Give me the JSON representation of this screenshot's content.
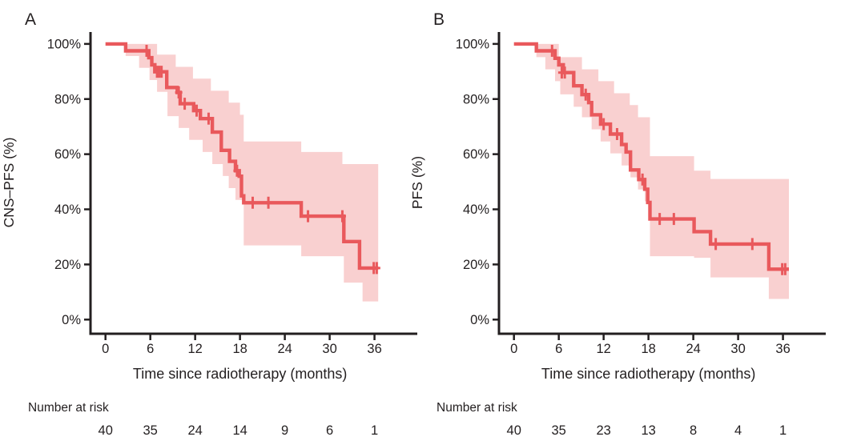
{
  "chart_data": {
    "type": "line",
    "subtype": "kaplan-meier-step-with-confidence-band",
    "title": "",
    "x_axis": {
      "label": "Time since radiotherapy (months)",
      "ticks": [
        0,
        6,
        12,
        18,
        24,
        30,
        36
      ],
      "range": [
        0,
        39
      ]
    },
    "y_axis": {
      "tick_values": [
        0,
        20,
        40,
        60,
        80,
        100
      ],
      "tick_labels": [
        "0%",
        "20%",
        "40%",
        "60%",
        "80%",
        "100%"
      ],
      "range": [
        0,
        100
      ]
    },
    "risk_label": "Number at risk",
    "risk_times": [
      0,
      6,
      12,
      18,
      24,
      30,
      36
    ],
    "colors": {
      "curve": "#e9595c",
      "band": "#f9d0d0",
      "axis": "#231f20",
      "text": "#231f20",
      "background": "#ffffff"
    },
    "panels": [
      {
        "label": "A",
        "ylabel": "CNS–PFS (%)",
        "risk_counts": [
          40,
          35,
          24,
          14,
          9,
          6,
          1
        ],
        "end_time": 36.5,
        "km": [
          [
            0,
            100
          ],
          [
            2.7,
            97.5
          ],
          [
            5.8,
            95.0
          ],
          [
            6.2,
            92.4
          ],
          [
            6.6,
            89.9
          ],
          [
            8.2,
            84.2
          ],
          [
            9.6,
            82.4
          ],
          [
            10.0,
            78.3
          ],
          [
            11.8,
            75.8
          ],
          [
            12.7,
            72.9
          ],
          [
            14.3,
            68.0
          ],
          [
            15.5,
            61.4
          ],
          [
            16.6,
            57.4
          ],
          [
            17.4,
            54.0
          ],
          [
            17.9,
            52.0
          ],
          [
            18.2,
            44.9
          ],
          [
            18.5,
            42.4
          ],
          [
            26.2,
            37.5
          ],
          [
            31.9,
            28.3
          ],
          [
            34.0,
            18.7
          ]
        ],
        "censors": [
          [
            5.5,
            97.5
          ],
          [
            6.9,
            89.9
          ],
          [
            7.2,
            89.9
          ],
          [
            7.5,
            89.9
          ],
          [
            9.8,
            82.4
          ],
          [
            10.6,
            78.3
          ],
          [
            12.2,
            75.8
          ],
          [
            13.8,
            72.9
          ],
          [
            17.6,
            54.0
          ],
          [
            19.7,
            42.4
          ],
          [
            21.8,
            42.4
          ],
          [
            27.1,
            37.5
          ],
          [
            31.7,
            37.5
          ],
          [
            35.9,
            18.7
          ],
          [
            36.3,
            18.7
          ]
        ],
        "band_upper": [
          [
            2.7,
            100
          ],
          [
            6.9,
            96.1
          ],
          [
            9.4,
            91.7
          ],
          [
            11.7,
            87.4
          ],
          [
            14.1,
            83.0
          ],
          [
            16.5,
            78.7
          ],
          [
            18.0,
            74.3
          ],
          [
            18.5,
            64.6
          ],
          [
            26.2,
            60.8
          ],
          [
            31.7,
            56.4
          ]
        ],
        "band_lower": [
          [
            2.7,
            95.6
          ],
          [
            4.5,
            91.3
          ],
          [
            5.9,
            86.9
          ],
          [
            6.9,
            82.6
          ],
          [
            8.3,
            73.8
          ],
          [
            9.8,
            69.5
          ],
          [
            11.2,
            65.2
          ],
          [
            13.0,
            60.8
          ],
          [
            14.3,
            56.4
          ],
          [
            15.7,
            52.1
          ],
          [
            16.5,
            47.7
          ],
          [
            17.4,
            43.4
          ],
          [
            18.5,
            26.9
          ],
          [
            26.2,
            23.0
          ],
          [
            31.9,
            13.4
          ],
          [
            34.4,
            6.6
          ]
        ]
      },
      {
        "label": "B",
        "ylabel": "PFS (%)",
        "risk_counts": [
          40,
          35,
          23,
          13,
          8,
          4,
          1
        ],
        "end_time": 36.8,
        "km": [
          [
            0,
            100
          ],
          [
            3.0,
            97.5
          ],
          [
            5.5,
            94.8
          ],
          [
            6.0,
            92.4
          ],
          [
            6.6,
            89.6
          ],
          [
            8.0,
            84.8
          ],
          [
            9.1,
            81.6
          ],
          [
            10.0,
            78.7
          ],
          [
            10.4,
            74.3
          ],
          [
            11.6,
            70.9
          ],
          [
            12.9,
            67.3
          ],
          [
            14.4,
            63.5
          ],
          [
            15.0,
            60.8
          ],
          [
            15.6,
            54.3
          ],
          [
            16.7,
            50.8
          ],
          [
            17.5,
            47.3
          ],
          [
            17.9,
            42.5
          ],
          [
            18.2,
            36.5
          ],
          [
            24.1,
            31.9
          ],
          [
            26.3,
            27.4
          ],
          [
            34.1,
            18.3
          ]
        ],
        "censors": [
          [
            5.1,
            97.5
          ],
          [
            6.4,
            89.6
          ],
          [
            6.8,
            89.6
          ],
          [
            9.6,
            81.6
          ],
          [
            12.0,
            70.9
          ],
          [
            13.8,
            67.3
          ],
          [
            17.2,
            50.8
          ],
          [
            19.5,
            36.5
          ],
          [
            21.4,
            36.5
          ],
          [
            27.0,
            27.4
          ],
          [
            31.9,
            27.4
          ],
          [
            35.9,
            18.3
          ],
          [
            36.3,
            18.3
          ]
        ],
        "band_upper": [
          [
            3.0,
            100
          ],
          [
            6.0,
            95.2
          ],
          [
            9.1,
            90.8
          ],
          [
            11.3,
            86.5
          ],
          [
            13.4,
            82.1
          ],
          [
            15.5,
            77.8
          ],
          [
            16.6,
            73.4
          ],
          [
            18.2,
            59.3
          ],
          [
            24.1,
            54.0
          ],
          [
            26.3,
            51.0
          ]
        ],
        "band_lower": [
          [
            3.0,
            95.2
          ],
          [
            4.2,
            90.8
          ],
          [
            5.5,
            86.5
          ],
          [
            6.2,
            81.7
          ],
          [
            8.0,
            77.2
          ],
          [
            9.1,
            73.4
          ],
          [
            10.4,
            69.0
          ],
          [
            11.6,
            64.6
          ],
          [
            12.9,
            60.3
          ],
          [
            14.4,
            55.9
          ],
          [
            15.6,
            51.6
          ],
          [
            16.6,
            47.2
          ],
          [
            17.5,
            42.9
          ],
          [
            18.2,
            23.0
          ],
          [
            24.1,
            22.4
          ],
          [
            26.3,
            15.3
          ],
          [
            34.1,
            7.5
          ]
        ]
      }
    ]
  }
}
